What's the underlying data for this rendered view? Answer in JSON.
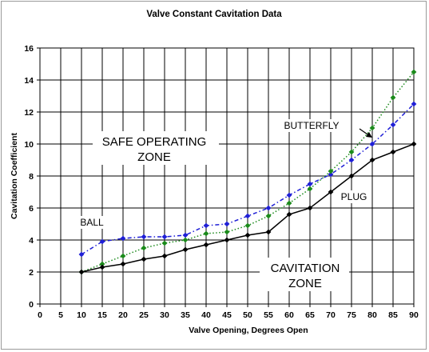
{
  "chart_data": {
    "type": "line",
    "title": "Valve Constant Cavitation Data",
    "xlabel": "Valve Opening, Degrees Open",
    "ylabel": "Cavitation Coefficient",
    "xlim": [
      0,
      90
    ],
    "ylim": [
      0,
      16
    ],
    "xticks": [
      0,
      5,
      10,
      15,
      20,
      25,
      30,
      35,
      40,
      45,
      50,
      55,
      60,
      65,
      70,
      75,
      80,
      85,
      90
    ],
    "yticks": [
      0,
      2,
      4,
      6,
      8,
      10,
      12,
      14,
      16
    ],
    "grid": true,
    "x": [
      10,
      15,
      20,
      25,
      30,
      35,
      40,
      45,
      50,
      55,
      60,
      65,
      70,
      75,
      80,
      85,
      90
    ],
    "series": [
      {
        "name": "BALL",
        "color": "#1f1fd6",
        "values": [
          3.1,
          3.9,
          4.1,
          4.2,
          4.2,
          4.3,
          4.9,
          5.0,
          5.5,
          6.0,
          6.8,
          7.5,
          8.1,
          9.0,
          10.0,
          11.2,
          12.5
        ]
      },
      {
        "name": "BUTTERFLY",
        "color": "#1a8a1a",
        "values": [
          2.0,
          2.5,
          3.0,
          3.5,
          3.8,
          4.0,
          4.4,
          4.5,
          4.9,
          5.5,
          6.3,
          7.2,
          8.3,
          9.5,
          11.0,
          12.9,
          14.5
        ]
      },
      {
        "name": "PLUG",
        "color": "#000000",
        "values": [
          2.0,
          2.3,
          2.5,
          2.8,
          3.0,
          3.4,
          3.7,
          4.0,
          4.3,
          4.5,
          5.6,
          6.0,
          7.0,
          8.0,
          9.0,
          9.5,
          10.0
        ]
      }
    ],
    "annotations": {
      "safe_line1": "SAFE OPERATING",
      "safe_line2": "ZONE",
      "cav_line1": "CAVITATION",
      "cav_line2": "ZONE",
      "ball": "BALL",
      "butterfly": "BUTTERFLY",
      "plug": "PLUG"
    }
  }
}
